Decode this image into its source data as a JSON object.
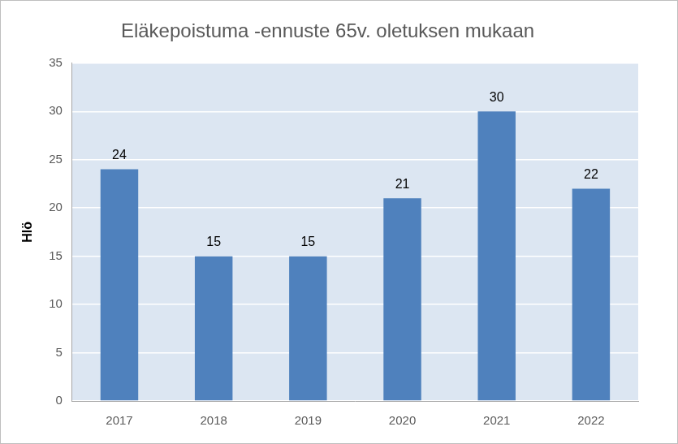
{
  "chart_data": {
    "type": "bar",
    "title": "Eläkepoistuma -ennuste 65v. oletuksen mukaan",
    "y_label": "Hlö",
    "categories": [
      "2017",
      "2018",
      "2019",
      "2020",
      "2021",
      "2022"
    ],
    "values": [
      24,
      15,
      15,
      21,
      30,
      22
    ],
    "color": "#4f81bd",
    "ylim": [
      0,
      35
    ],
    "yticks": [
      0,
      5,
      10,
      15,
      20,
      25,
      30,
      35
    ],
    "grid": true,
    "data_labels": true
  }
}
